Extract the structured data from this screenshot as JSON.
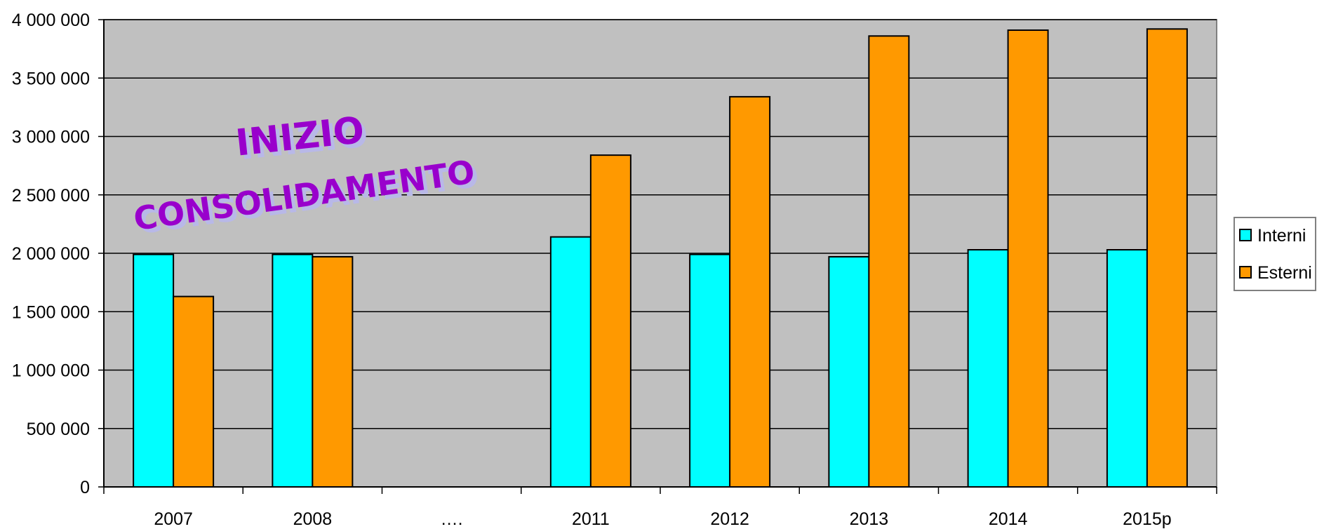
{
  "chart_data": {
    "type": "bar",
    "categories": [
      "2007",
      "2008",
      "….",
      "2011",
      "2012",
      "2013",
      "2014",
      "2015p"
    ],
    "series": [
      {
        "name": "Interni",
        "color": "#00FFFF",
        "values": [
          1990000,
          1990000,
          null,
          2140000,
          1990000,
          1970000,
          2030000,
          2030000
        ]
      },
      {
        "name": "Esterni",
        "color": "#FF9900",
        "values": [
          1630000,
          1970000,
          null,
          2840000,
          3340000,
          3860000,
          3910000,
          3920000
        ]
      }
    ],
    "ylim": [
      0,
      4000000
    ],
    "yticks": [
      "0",
      "500 000",
      "1 000 000",
      "1 500 000",
      "2 000 000",
      "2 500 000",
      "3 000 000",
      "3 500 000",
      "4 000 000"
    ],
    "grid": true,
    "legend": "right",
    "plot_background": "#C0C0C0",
    "annotation": {
      "line1": "INIZIO",
      "line2": "CONSOLIDAMENTO",
      "color": "#9900CC"
    }
  }
}
